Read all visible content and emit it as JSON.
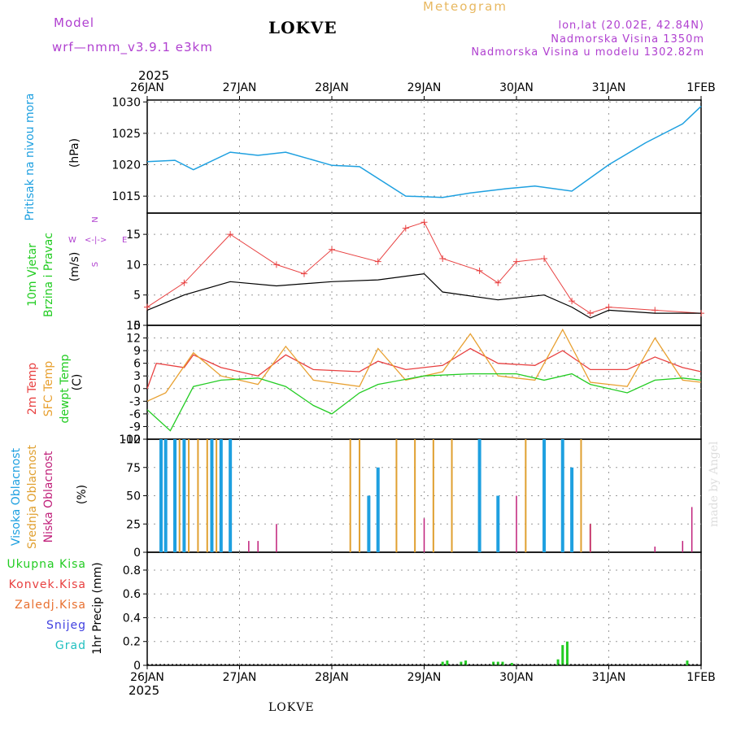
{
  "header": {
    "model_label": "Model",
    "model_name": "wrf—nmm_v3.9.1  e3km",
    "station": "LOKVE",
    "title": "Meteogram",
    "coords": "lon,lat (20.02E, 42.84N)",
    "elevation": "Nadmorska Visina 1350m",
    "model_elevation": "Nadmorska Visina u modelu 1302.82m",
    "year_top": "2025",
    "year_bottom": "2025",
    "footer_station": "LOKVE",
    "credit": "made by Angel"
  },
  "axis_dates": [
    "26JAN",
    "27JAN",
    "28JAN",
    "29JAN",
    "30JAN",
    "31JAN",
    "1FEB"
  ],
  "colors": {
    "pressure": "#1ea0e0",
    "temp": "#e84040",
    "sfc": "#e8a030",
    "dewpt": "#22cc22",
    "wind_gust": "#e84040",
    "wind_speed": "#000000",
    "cloud_high": "#1ea0e0",
    "cloud_mid": "#e0a030",
    "cloud_low": "#c0207a",
    "rain": "#22cc22",
    "conv": "#e84040",
    "frz": "#e87030",
    "snow": "#4040e0",
    "grad": "#20c0c0"
  },
  "chart_data": [
    {
      "type": "line",
      "name": "pressure",
      "ylabel_main": "Pritisak na nivou mora",
      "ylabel_unit": "(hPa)",
      "ylim": [
        1012.3,
        1030.3
      ],
      "yticks": [
        "1015",
        "1020",
        "1025",
        "1030"
      ],
      "x_days": [
        0,
        0.3,
        0.5,
        0.9,
        1.2,
        1.5,
        2.0,
        2.3,
        2.8,
        3.2,
        3.5,
        3.9,
        4.2,
        4.6,
        5.0,
        5.4,
        5.8,
        6.0
      ],
      "values": [
        1020.5,
        1020.7,
        1019.2,
        1022.0,
        1021.5,
        1022.0,
        1019.9,
        1019.7,
        1015.0,
        1014.8,
        1015.5,
        1016.2,
        1016.6,
        1015.8,
        1020.0,
        1023.5,
        1026.5,
        1029.3
      ]
    },
    {
      "type": "line",
      "name": "wind",
      "ylabel_main": "10m Vjetar",
      "ylabel_sub": "Brzina i Pravac",
      "ylabel_unit": "(m/s)",
      "compass": [
        "N",
        "W",
        "<-|->",
        "E",
        "S"
      ],
      "ylim": [
        0,
        18.5
      ],
      "yticks": [
        "0",
        "5",
        "10",
        "15"
      ],
      "series": [
        {
          "name": "Brzina",
          "x_days": [
            0,
            0.4,
            0.9,
            1.4,
            2.0,
            2.5,
            3.0,
            3.2,
            3.8,
            4.3,
            4.6,
            4.8,
            5.0,
            5.5,
            6.0
          ],
          "values": [
            2.5,
            5.0,
            7.2,
            6.5,
            7.2,
            7.5,
            8.5,
            5.5,
            4.2,
            5.0,
            3.0,
            1.2,
            2.5,
            2.0,
            2.0
          ]
        },
        {
          "name": "Udari",
          "x_days": [
            0,
            0.4,
            0.9,
            1.4,
            1.7,
            2.0,
            2.5,
            2.8,
            3.0,
            3.2,
            3.6,
            3.8,
            4.0,
            4.3,
            4.6,
            4.8,
            5.0,
            5.5,
            6.0
          ],
          "values": [
            3.0,
            7.0,
            15.0,
            10.0,
            8.5,
            12.5,
            10.5,
            16.0,
            17.0,
            11.0,
            9.0,
            7.0,
            10.5,
            11.0,
            4.0,
            2.0,
            3.0,
            2.5,
            2.0
          ]
        }
      ]
    },
    {
      "type": "line",
      "name": "temperature",
      "ylabel_parts": [
        "2m Temp",
        "SFC Temp",
        "dewpt Temp"
      ],
      "ylabel_unit": "(C)",
      "ylim": [
        -12,
        15
      ],
      "yticks": [
        "-12",
        "-9",
        "-6",
        "-3",
        "0",
        "3",
        "6",
        "9",
        "12",
        "15"
      ],
      "series": [
        {
          "name": "2m Temp",
          "x_days": [
            0,
            0.1,
            0.4,
            0.5,
            0.8,
            1.2,
            1.5,
            1.8,
            2.3,
            2.5,
            2.8,
            3.2,
            3.5,
            3.8,
            4.2,
            4.5,
            4.8,
            5.2,
            5.5,
            5.8,
            6.0
          ],
          "values": [
            0,
            6.0,
            5.0,
            8.0,
            5.0,
            3.0,
            8.0,
            4.5,
            4.0,
            6.5,
            4.5,
            5.5,
            9.5,
            6.0,
            5.5,
            9.0,
            4.5,
            4.5,
            7.5,
            5.0,
            4.0
          ]
        },
        {
          "name": "SFC Temp",
          "x_days": [
            0,
            0.2,
            0.5,
            0.8,
            1.2,
            1.5,
            1.8,
            2.3,
            2.5,
            2.8,
            3.2,
            3.5,
            3.8,
            4.2,
            4.5,
            4.8,
            5.2,
            5.5,
            5.8,
            6.0
          ],
          "values": [
            -3.0,
            -1.0,
            8.5,
            3.0,
            1.0,
            10.0,
            2.0,
            0.5,
            9.5,
            2.0,
            4.0,
            13.0,
            3.0,
            2.0,
            14.0,
            1.5,
            0.5,
            12.0,
            2.0,
            1.5
          ]
        },
        {
          "name": "dewpt Temp",
          "x_days": [
            0,
            0.25,
            0.5,
            0.8,
            1.2,
            1.5,
            1.8,
            2.0,
            2.3,
            2.5,
            3.0,
            3.5,
            4.0,
            4.3,
            4.6,
            4.8,
            5.2,
            5.5,
            5.8,
            6.0
          ],
          "values": [
            -5.0,
            -10.0,
            0.5,
            2.0,
            2.5,
            0.5,
            -4.0,
            -6.0,
            -1.0,
            1.0,
            3.0,
            3.5,
            3.5,
            2.0,
            3.5,
            1.0,
            -1.0,
            2.0,
            2.5,
            2.0
          ]
        }
      ]
    },
    {
      "type": "bar",
      "name": "clouds",
      "ylabel_parts": [
        "Visoka Oblacnost",
        "Srednja Oblacnost",
        "Niska Oblacnost"
      ],
      "ylabel_unit": "(%)",
      "ylim": [
        0,
        100
      ],
      "yticks": [
        "0",
        "25",
        "50",
        "75",
        "100"
      ],
      "series": [
        {
          "name": "Visoka",
          "x_days": [
            0.15,
            0.2,
            0.3,
            0.4,
            0.7,
            0.8,
            0.9,
            2.4,
            2.5,
            3.6,
            3.8,
            4.3,
            4.5,
            4.6
          ],
          "values": [
            100,
            100,
            100,
            100,
            100,
            100,
            100,
            50,
            75,
            100,
            50,
            100,
            100,
            75
          ]
        },
        {
          "name": "Srednja",
          "x_days": [
            0.35,
            0.45,
            0.55,
            0.65,
            0.75,
            2.2,
            2.3,
            2.7,
            2.9,
            3.1,
            3.3,
            4.1,
            4.7,
            4.8
          ],
          "values": [
            100,
            100,
            100,
            100,
            100,
            100,
            100,
            100,
            100,
            100,
            100,
            100,
            100,
            25
          ]
        },
        {
          "name": "Niska",
          "x_days": [
            1.1,
            1.2,
            1.4,
            3.0,
            4.0,
            4.8,
            5.5,
            5.8,
            5.9
          ],
          "values": [
            10,
            10,
            25,
            30,
            50,
            25,
            5,
            10,
            40
          ]
        }
      ]
    },
    {
      "type": "bar",
      "name": "precipitation",
      "ylabel_unit": "1hr Precip (mm)",
      "legend": [
        "Ukupna Kisa",
        "Konvek.Kisa",
        "Zaledj.Kisa",
        "Snijeg",
        "Grad"
      ],
      "ylim": [
        0,
        0.95
      ],
      "yticks": [
        "0",
        "0.2",
        "0.4",
        "0.6",
        "0.8"
      ],
      "x_days": [
        3.2,
        3.25,
        3.4,
        3.45,
        3.75,
        3.8,
        3.85,
        3.95,
        4.45,
        4.5,
        4.55,
        5.85
      ],
      "values": [
        0.03,
        0.04,
        0.03,
        0.04,
        0.03,
        0.03,
        0.03,
        0.02,
        0.05,
        0.17,
        0.2,
        0.04
      ]
    }
  ]
}
